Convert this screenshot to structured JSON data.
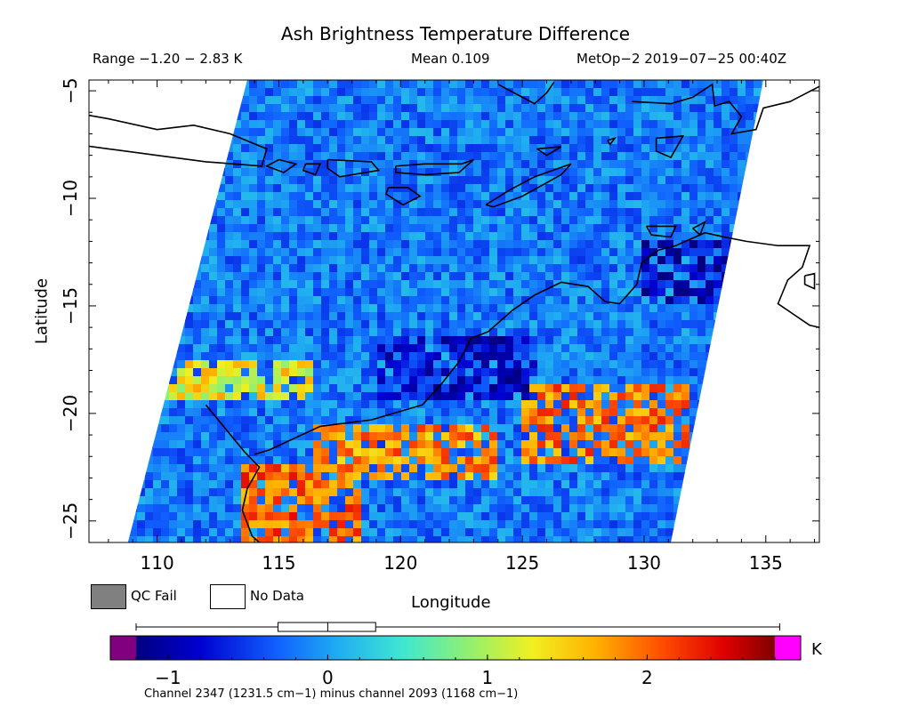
{
  "header": {
    "title": "Ash Brightness Temperature Difference",
    "range": "Range −1.20 − 2.83 K",
    "mean": "Mean 0.109",
    "satellite_time": "MetOp−2 2019−07−25 00:40Z"
  },
  "legend": {
    "qc_fail": "QC Fail",
    "no_data": "No Data",
    "qc_fail_color": "#808080",
    "no_data_color": "#ffffff"
  },
  "colorbar": {
    "unit": "K",
    "caption": "Channel 2347 (1231.5 cm−1) minus channel 2093 (1168 cm−1)",
    "vmin": -1.2,
    "vmax": 2.8,
    "under_color": "#800080",
    "over_color": "#ff00ff",
    "ticks": [
      -1,
      0,
      1,
      2
    ],
    "tick_labels": [
      "−1",
      "0",
      "1",
      "2"
    ],
    "boxplot": {
      "whisker_low": -1.2,
      "q1": -0.1,
      "median": 0.0,
      "q3": 0.3,
      "whisker_high": 2.83
    }
  },
  "chart_data": {
    "type": "heatmap",
    "title": "Ash Brightness Temperature Difference",
    "xlabel": "Longitude",
    "ylabel": "Latitude",
    "xlim": [
      107.2,
      137.2
    ],
    "ylim": [
      -26,
      -4.5
    ],
    "xticks": [
      110,
      115,
      120,
      125,
      130,
      135
    ],
    "yticks": [
      -5,
      -10,
      -15,
      -20,
      -25
    ],
    "swath_corners": [
      [
        113.7,
        -4.5
      ],
      [
        134.9,
        -4.5
      ],
      [
        131.1,
        -26
      ],
      [
        108.8,
        -26
      ]
    ],
    "value_range": [
      -1.2,
      2.83
    ],
    "mean": 0.109,
    "units": "K",
    "features": [
      {
        "lon": [
          108.8,
          116.5
        ],
        "lat": [
          -17.5,
          -19.5
        ],
        "value": 1.3,
        "desc": "warm band west"
      },
      {
        "lon": [
          113.5,
          118.5
        ],
        "lat": [
          -22.5,
          -26
        ],
        "value": 2.0,
        "desc": "hot area"
      },
      {
        "lon": [
          116.5,
          124
        ],
        "lat": [
          -20.5,
          -23
        ],
        "value": 1.8,
        "desc": "patchy high"
      },
      {
        "lon": [
          125,
          132
        ],
        "lat": [
          -18.5,
          -22.5
        ],
        "value": 1.9,
        "desc": "hot area east"
      },
      {
        "lon": [
          119,
          125.5
        ],
        "lat": [
          -16.5,
          -19.5
        ],
        "value": -0.8,
        "desc": "cold band"
      },
      {
        "lon": [
          130,
          134
        ],
        "lat": [
          -12,
          -15
        ],
        "value": -0.9,
        "desc": "cold patch"
      }
    ]
  }
}
